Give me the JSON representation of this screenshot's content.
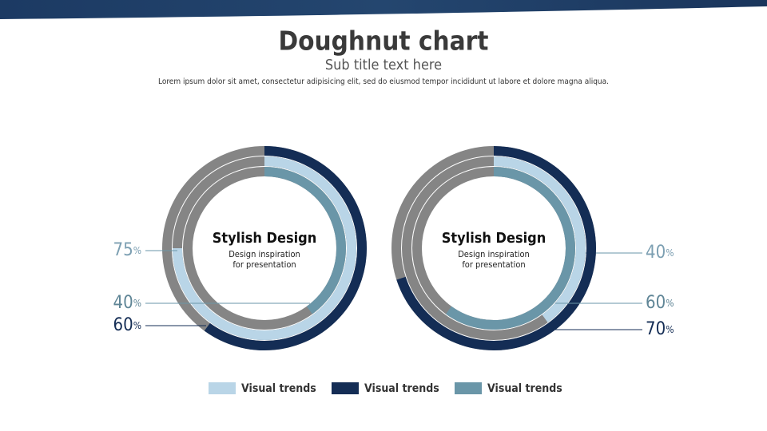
{
  "header": {
    "title": "Doughnut chart",
    "subtitle": "Sub title text here",
    "description": "Lorem ipsum dolor sit amet, consectetur adipisicing elit, sed do eiusmod tempor incididunt ut labore et dolore magna aliqua."
  },
  "chart_data": [
    {
      "type": "doughnut",
      "center_title": "Stylish Design",
      "center_text": [
        "Design inspiration",
        "for presentation"
      ],
      "unit": "%",
      "ylim": [
        0,
        100
      ],
      "track_color": "#858585",
      "series": [
        {
          "name": "Visual trends",
          "color": "#b9d5e7",
          "values": [
            75
          ]
        },
        {
          "name": "Visual trends",
          "color": "#142d55",
          "values": [
            60
          ]
        },
        {
          "name": "Visual trends",
          "color": "#6a96a8",
          "values": [
            40
          ]
        }
      ]
    },
    {
      "type": "doughnut",
      "center_title": "Stylish Design",
      "center_text": [
        "Design inspiration",
        "for presentation"
      ],
      "unit": "%",
      "ylim": [
        0,
        100
      ],
      "track_color": "#858585",
      "series": [
        {
          "name": "Visual trends",
          "color": "#b9d5e7",
          "values": [
            40
          ]
        },
        {
          "name": "Visual trends",
          "color": "#142d55",
          "values": [
            70
          ]
        },
        {
          "name": "Visual trends",
          "color": "#6a96a8",
          "values": [
            60
          ]
        }
      ]
    }
  ]
}
